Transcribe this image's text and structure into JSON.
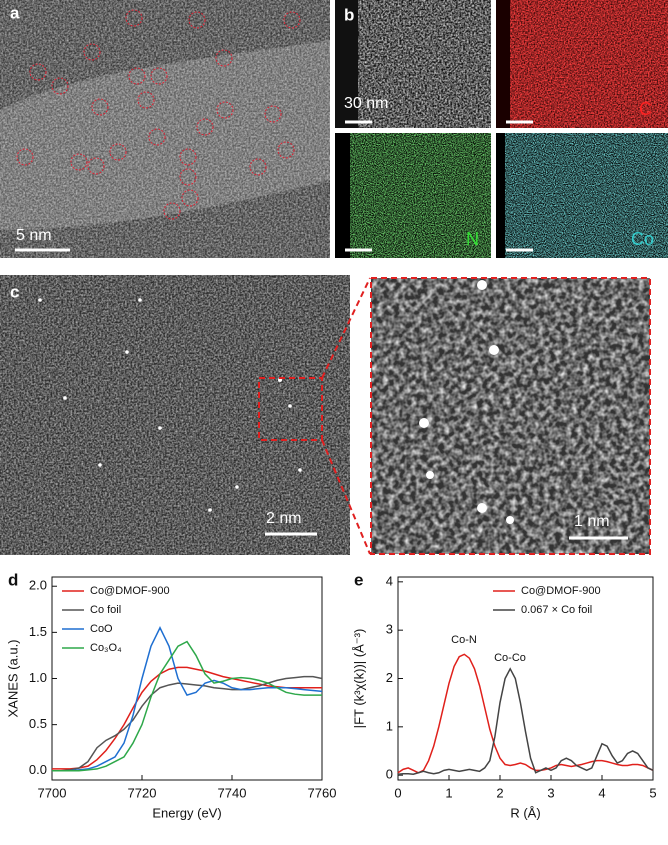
{
  "panels": {
    "a": {
      "label": "a",
      "scale_bar": "5 nm"
    },
    "b": {
      "label": "b",
      "scale_bar": "30 nm",
      "maps": [
        "C",
        "N",
        "Co"
      ]
    },
    "c": {
      "label": "c",
      "scale_bar": "2 nm",
      "zoom_scale_bar": "1 nm"
    }
  },
  "chart_data": [
    {
      "type": "line",
      "panel_label": "d",
      "xlabel": "Energy (eV)",
      "ylabel": "XANES (a.u.)",
      "xlim": [
        7700,
        7760
      ],
      "xticks": [
        7700,
        7720,
        7740,
        7760
      ],
      "ylim": [
        -0.1,
        2.1
      ],
      "yticks": [
        {
          "value": 0,
          "label": "0.0"
        },
        {
          "value": 0.5,
          "label": "0.5"
        },
        {
          "value": 1,
          "label": "1.0"
        },
        {
          "value": 1.5,
          "label": "1.5"
        },
        {
          "value": 2,
          "label": "2.0"
        }
      ],
      "legend": "upper left",
      "x": [
        7700,
        7702,
        7704,
        7706,
        7708,
        7710,
        7712,
        7714,
        7716,
        7718,
        7720,
        7722,
        7724,
        7726,
        7728,
        7730,
        7732,
        7734,
        7736,
        7738,
        7740,
        7742,
        7744,
        7746,
        7748,
        7750,
        7752,
        7754,
        7756,
        7758,
        7760
      ],
      "series": [
        {
          "name": "Co@DMOF-900",
          "color": "#e0201b",
          "values": [
            0.02,
            0.02,
            0.02,
            0.03,
            0.05,
            0.12,
            0.22,
            0.35,
            0.5,
            0.68,
            0.85,
            0.97,
            1.05,
            1.1,
            1.12,
            1.12,
            1.1,
            1.08,
            1.05,
            1.02,
            1.0,
            0.98,
            0.96,
            0.94,
            0.92,
            0.91,
            0.9,
            0.9,
            0.9,
            0.9,
            0.9
          ]
        },
        {
          "name": "Co foil",
          "color": "#555555",
          "values": [
            0,
            0,
            0.01,
            0.03,
            0.1,
            0.25,
            0.33,
            0.38,
            0.45,
            0.55,
            0.7,
            0.82,
            0.9,
            0.93,
            0.95,
            0.94,
            0.93,
            0.92,
            0.9,
            0.89,
            0.88,
            0.88,
            0.9,
            0.92,
            0.95,
            0.98,
            1.0,
            1.01,
            1.02,
            1.02,
            1.0
          ]
        },
        {
          "name": "CoO",
          "color": "#1f6fd1",
          "values": [
            0,
            0,
            0,
            0.01,
            0.02,
            0.05,
            0.1,
            0.15,
            0.3,
            0.6,
            1.0,
            1.35,
            1.55,
            1.35,
            1.0,
            0.82,
            0.85,
            0.95,
            0.98,
            0.95,
            0.9,
            0.88,
            0.88,
            0.89,
            0.9,
            0.9,
            0.9,
            0.89,
            0.88,
            0.87,
            0.86
          ]
        },
        {
          "name": "Co₃O₄",
          "color": "#2ea84a",
          "values": [
            0,
            0,
            0,
            0,
            0.01,
            0.02,
            0.05,
            0.1,
            0.15,
            0.3,
            0.5,
            0.8,
            1.05,
            1.2,
            1.35,
            1.4,
            1.25,
            1.05,
            0.95,
            0.97,
            1.0,
            1.01,
            1.0,
            0.98,
            0.95,
            0.9,
            0.85,
            0.83,
            0.82,
            0.82,
            0.82
          ]
        }
      ]
    },
    {
      "type": "line",
      "panel_label": "e",
      "xlabel": "R (Å)",
      "ylabel": "|FT (k³χ(k))| (Å⁻³)",
      "xlim": [
        0,
        5
      ],
      "xticks": [
        0,
        1,
        2,
        3,
        4,
        5
      ],
      "ylim": [
        -0.1,
        4.1
      ],
      "yticks": [
        0,
        1,
        2,
        3,
        4
      ],
      "legend": "upper right",
      "annotations": [
        "Co-N",
        "Co-Co"
      ],
      "x": [
        0,
        0.1,
        0.2,
        0.3,
        0.4,
        0.5,
        0.6,
        0.7,
        0.8,
        0.9,
        1.0,
        1.1,
        1.2,
        1.3,
        1.4,
        1.5,
        1.6,
        1.7,
        1.8,
        1.9,
        2.0,
        2.1,
        2.2,
        2.3,
        2.4,
        2.5,
        2.6,
        2.7,
        2.8,
        2.9,
        3.0,
        3.1,
        3.2,
        3.3,
        3.4,
        3.5,
        3.6,
        3.7,
        3.8,
        3.9,
        4.0,
        4.1,
        4.2,
        4.3,
        4.4,
        4.5,
        4.6,
        4.7,
        4.8,
        4.9,
        5.0
      ],
      "series": [
        {
          "name": "Co@DMOF-900",
          "color": "#e0201b",
          "values": [
            0.05,
            0.12,
            0.15,
            0.1,
            0.05,
            0.1,
            0.3,
            0.6,
            1.0,
            1.45,
            1.9,
            2.25,
            2.45,
            2.5,
            2.42,
            2.2,
            1.85,
            1.4,
            0.95,
            0.6,
            0.35,
            0.22,
            0.2,
            0.22,
            0.25,
            0.22,
            0.15,
            0.1,
            0.1,
            0.12,
            0.15,
            0.2,
            0.22,
            0.2,
            0.18,
            0.2,
            0.22,
            0.25,
            0.28,
            0.3,
            0.3,
            0.28,
            0.25,
            0.22,
            0.2,
            0.2,
            0.22,
            0.22,
            0.2,
            0.15,
            0.1
          ]
        },
        {
          "name": "0.067 × Co foil",
          "color": "#444444",
          "values": [
            0.02,
            0.03,
            0.03,
            0.02,
            0.05,
            0.08,
            0.05,
            0.03,
            0.05,
            0.1,
            0.12,
            0.1,
            0.08,
            0.1,
            0.12,
            0.1,
            0.08,
            0.15,
            0.3,
            0.8,
            1.5,
            2.0,
            2.2,
            2.0,
            1.5,
            0.9,
            0.35,
            0.05,
            0.1,
            0.15,
            0.1,
            0.15,
            0.3,
            0.35,
            0.3,
            0.2,
            0.15,
            0.1,
            0.15,
            0.4,
            0.65,
            0.6,
            0.4,
            0.25,
            0.3,
            0.45,
            0.5,
            0.45,
            0.3,
            0.15,
            0.1
          ]
        }
      ]
    }
  ]
}
